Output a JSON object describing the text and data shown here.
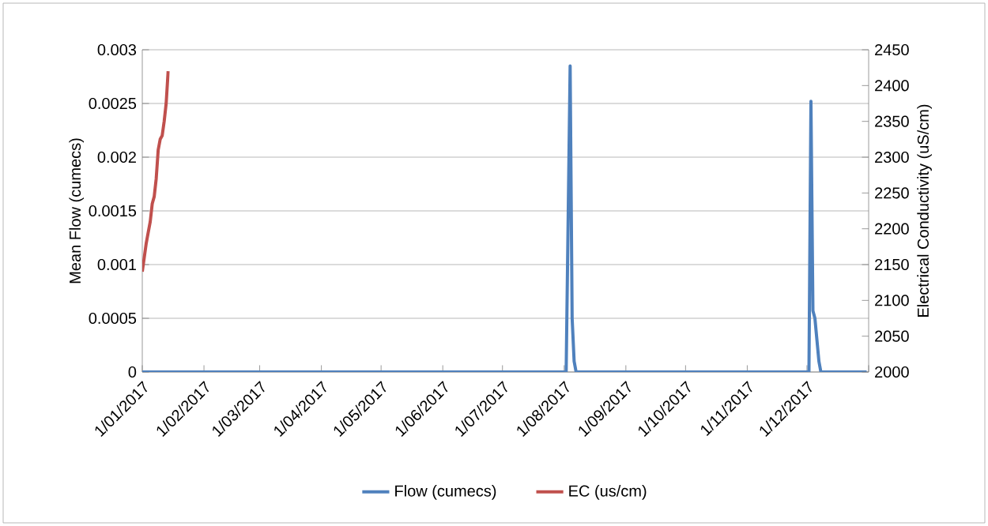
{
  "chart_data": {
    "type": "line",
    "xlabel": null,
    "ylabel": "Mean Flow (cumecs)",
    "y2label": "Electrical Conductivity (uS/cm)",
    "xlim": [
      "2017-01-01",
      "2018-01-01"
    ],
    "xticks": [
      {
        "value": "2017-01-01",
        "label": "1/01/2017"
      },
      {
        "value": "2017-02-01",
        "label": "1/02/2017"
      },
      {
        "value": "2017-03-01",
        "label": "1/03/2017"
      },
      {
        "value": "2017-04-01",
        "label": "1/04/2017"
      },
      {
        "value": "2017-05-01",
        "label": "1/05/2017"
      },
      {
        "value": "2017-06-01",
        "label": "1/06/2017"
      },
      {
        "value": "2017-07-01",
        "label": "1/07/2017"
      },
      {
        "value": "2017-08-01",
        "label": "1/08/2017"
      },
      {
        "value": "2017-09-01",
        "label": "1/09/2017"
      },
      {
        "value": "2017-10-01",
        "label": "1/10/2017"
      },
      {
        "value": "2017-11-01",
        "label": "1/11/2017"
      },
      {
        "value": "2017-12-01",
        "label": "1/12/2017"
      },
      {
        "value": "2018-01-01",
        "label": null
      }
    ],
    "ylim": [
      0,
      0.003
    ],
    "yticks": [
      0,
      0.0005,
      0.001,
      0.0015,
      0.002,
      0.0025,
      0.003
    ],
    "y2lim": [
      2000,
      2450
    ],
    "y2ticks": [
      2000,
      2050,
      2100,
      2150,
      2200,
      2250,
      2300,
      2350,
      2400,
      2450
    ],
    "grid": "y",
    "legend": "bottom",
    "line_style": "solid",
    "series": [
      {
        "name": "Flow (cumecs)",
        "color": "#4f81bd",
        "x": [
          "2017-01-01",
          "2017-08-02",
          "2017-08-04",
          "2017-08-05",
          "2017-08-06",
          "2017-08-07",
          "2017-12-02",
          "2017-12-03",
          "2017-12-04",
          "2017-12-05",
          "2017-12-06",
          "2017-12-07",
          "2017-12-08",
          "2017-12-31"
        ],
        "values": [
          0,
          0,
          0.00285,
          0.0005,
          0.0001,
          0,
          0,
          0.00252,
          0.00057,
          0.0005,
          0.0003,
          0.0001,
          0,
          0
        ]
      },
      {
        "name": "EC (us/cm)",
        "color": "#c0504d",
        "axis": "y2",
        "x": [
          "2017-01-01",
          "2017-01-02",
          "2017-01-03",
          "2017-01-04",
          "2017-01-05",
          "2017-01-06",
          "2017-01-07",
          "2017-01-08",
          "2017-01-09",
          "2017-01-10",
          "2017-01-11",
          "2017-01-12",
          "2017-01-13",
          "2017-01-14"
        ],
        "values": [
          2140,
          2160,
          2180,
          2195,
          2210,
          2235,
          2245,
          2270,
          2310,
          2325,
          2330,
          2350,
          2375,
          2420
        ]
      }
    ]
  }
}
